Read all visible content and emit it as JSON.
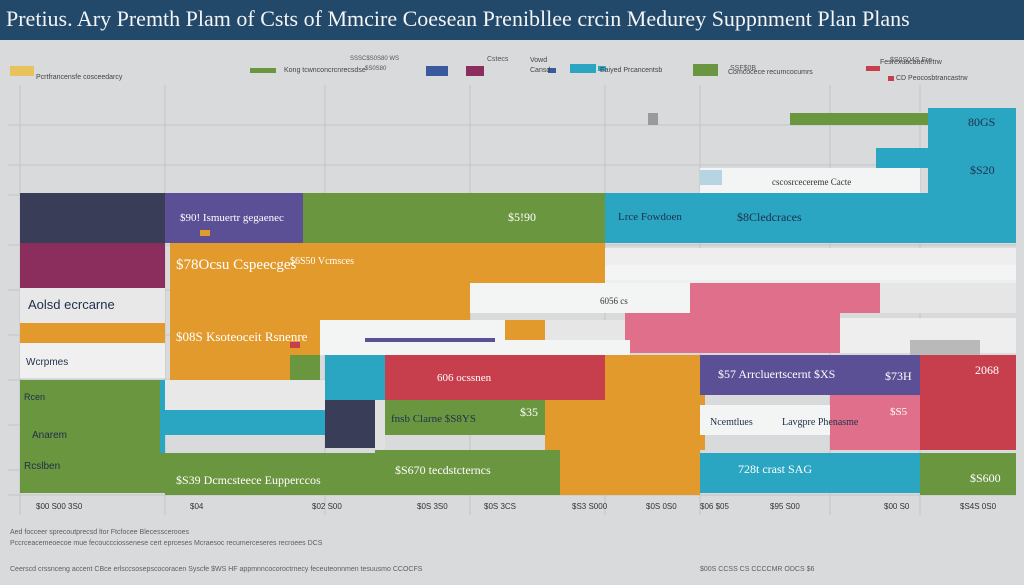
{
  "title": "Pretius. Ary Premth Plam of Csts of Mmcire Coesean Prenibllee crcin Medurey Suppnment Plan Plans",
  "colors": {
    "header_bg": "#22486a",
    "page_bg": "#d9dadb",
    "grid": "#c2c4c6",
    "navy": "#3a3d58",
    "purple": "#5b4f95",
    "magenta": "#8b2e5d",
    "green": "#6b9640",
    "orange": "#e29a2c",
    "teal": "#2aa6c3",
    "red": "#c73f4d",
    "pink": "#e06f8b",
    "white_bar": "#f3f4f4"
  },
  "legend": [
    {
      "label": "Pcrtfrancensfe cosceedarcy",
      "color": "#e8c25a"
    },
    {
      "label": "Kong tcwnconcrcnrecsdse",
      "color": "#6b9640"
    },
    {
      "label": "",
      "color": "#3a5aa0"
    },
    {
      "label": "",
      "color": "#8b2e5d"
    },
    {
      "label": "Cansd",
      "color": "#3a5aa0"
    },
    {
      "label": "Vowd",
      "color": "#2aa6c3"
    },
    {
      "label": "Eaiyed Prcancentsb",
      "color": "#2aa6c3"
    },
    {
      "label": "Comcocece recumcocumrs",
      "color": "#6b9640"
    },
    {
      "label": "Fesrexuacauentrtrw",
      "color": "#c73f4d"
    },
    {
      "label": "CD Peocosbtrancastrw",
      "color": "#c73f4d"
    }
  ],
  "chart_data": {
    "type": "bar",
    "title": "Pretius. Ary Premth Plam of Csts of Mmcire Coesean Prenibllee crcin Medurey Suppnment Plan Plans",
    "row_labels": [
      "Aolsd ecrcarne",
      "Wcrpmes",
      "Rcen",
      "Anarem",
      "Rcslben"
    ],
    "bar_labels": [
      "$90! Ismuertr gegaenec",
      "$5!90",
      "Lrce Fowdoen",
      "$8Cledcraces",
      "$78Ocsu Cspeecges",
      "$6S50 Vcmsces",
      "$08S Ksoteoceit Rsnenre",
      "606 ocssnen",
      "$57 Arrcluertscernt $XS",
      "$73H",
      "fnsb Clarne $S8YS",
      "$35",
      "Ncemtlues",
      "Lavgpre Phenasme",
      "$S39 Dcmcsteece Eupperccos",
      "$S670 tecdstcterncs",
      "728t crast SAG",
      "$S600",
      "80GS",
      "$S20",
      "2068",
      "$S5",
      "6056 cs",
      "cscosrcecereme Cacte"
    ],
    "x_tick_labels": [
      "$00 S00 3S0",
      "$04",
      "$02 S00",
      "$0S 3S0",
      "$0S 3CS",
      "$S3 S000",
      "$0S 0S0",
      "$06 $05",
      "$95 S00",
      "$00 S0",
      "$S4S 0S0"
    ],
    "header_labels": [
      "SSSC$S0S80 WS",
      "Cstecs",
      "$S0S80",
      "SSF$0B",
      "$S0S04S Fre"
    ],
    "grid": true,
    "legend_position": "top"
  },
  "footnotes": [
    "Aed focceer sprecoutprecsd ltor Ftcfocee Blecesscerooes",
    "Pccrceacemeoecoe mue fecouccciossenese cert eprceses Mcraesoc recumerceseres recroees DCS",
    "Ceerscd crssnceng accent CBce erlsccsosepscocoracen Syscfe $WS HF appmnncocoroctrnecy feceuteonnmen tesuusmo CCOCFS",
    "$00S CCSS CS CCCCMR ODCS $6"
  ]
}
